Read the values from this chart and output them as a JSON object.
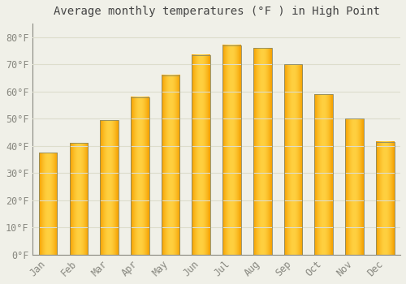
{
  "title": "Average monthly temperatures (°F ) in High Point",
  "months": [
    "Jan",
    "Feb",
    "Mar",
    "Apr",
    "May",
    "Jun",
    "Jul",
    "Aug",
    "Sep",
    "Oct",
    "Nov",
    "Dec"
  ],
  "values": [
    37.5,
    41.0,
    49.5,
    58.0,
    66.0,
    73.5,
    77.0,
    76.0,
    70.0,
    59.0,
    50.0,
    41.5
  ],
  "bar_color_center": "#FFD040",
  "bar_color_edge": "#F5A000",
  "bar_outline_color": "#888866",
  "background_color": "#f0f0e8",
  "grid_color": "#ddddcc",
  "ylim": [
    0,
    85
  ],
  "yticks": [
    0,
    10,
    20,
    30,
    40,
    50,
    60,
    70,
    80
  ],
  "ytick_labels": [
    "0°F",
    "10°F",
    "20°F",
    "30°F",
    "40°F",
    "50°F",
    "60°F",
    "70°F",
    "80°F"
  ],
  "title_fontsize": 10,
  "tick_fontsize": 8.5,
  "tick_color": "#888880",
  "title_color": "#444444",
  "bar_width": 0.6
}
